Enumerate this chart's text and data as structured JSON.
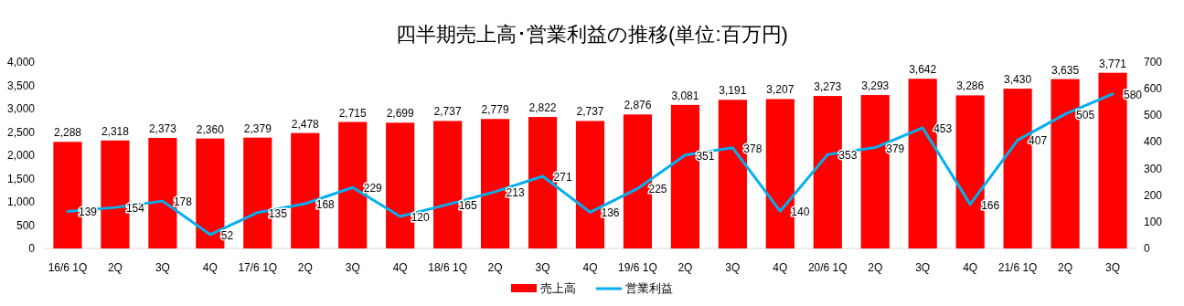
{
  "chart_data": {
    "type": "bar",
    "title": "四半期売上高･営業利益の推移(単位:百万円)",
    "categories": [
      "16/6 1Q",
      "2Q",
      "3Q",
      "4Q",
      "17/6 1Q",
      "2Q",
      "3Q",
      "4Q",
      "18/6 1Q",
      "2Q",
      "3Q",
      "4Q",
      "19/6 1Q",
      "2Q",
      "3Q",
      "4Q",
      "20/6 1Q",
      "2Q",
      "3Q",
      "4Q",
      "21/6 1Q",
      "2Q",
      "3Q"
    ],
    "series": [
      {
        "name": "売上高",
        "color": "#ff0000",
        "values": [
          2288,
          2318,
          2373,
          2360,
          2379,
          2478,
          2715,
          2699,
          2737,
          2779,
          2822,
          2737,
          2876,
          3081,
          3191,
          3207,
          3273,
          3293,
          3642,
          3286,
          3430,
          3635,
          3771
        ],
        "value_labels": [
          "2,288",
          "2,318",
          "2,373",
          "2,360",
          "2,379",
          "2,478",
          "2,715",
          "2,699",
          "2,737",
          "2,779",
          "2,822",
          "2,737",
          "2,876",
          "3,081",
          "3,191",
          "3,207",
          "3,273",
          "3,293",
          "3,642",
          "3,286",
          "3,430",
          "3,635",
          "3,771"
        ]
      },
      {
        "name": "営業利益",
        "type": "line",
        "axis": "y2",
        "color": "#00b0f0",
        "values": [
          139,
          154,
          178,
          52,
          135,
          168,
          229,
          120,
          165,
          213,
          271,
          136,
          225,
          351,
          378,
          140,
          353,
          379,
          453,
          166,
          407,
          505,
          580
        ],
        "value_labels": [
          "139",
          "154",
          "178",
          "52",
          "135",
          "168",
          "229",
          "120",
          "165",
          "213",
          "271",
          "136",
          "225",
          "351",
          "378",
          "140",
          "353",
          "379",
          "453",
          "166",
          "407",
          "505",
          "580"
        ]
      }
    ],
    "ylim": [
      0,
      4000
    ],
    "yticks": [
      0,
      {
        "value": 500,
        "label": "500"
      },
      {
        "value": 1000,
        "label": "1,000"
      },
      {
        "value": 1500,
        "label": "1,500"
      },
      {
        "value": 2000,
        "label": "2,000"
      },
      {
        "value": 2500,
        "label": "2,500"
      },
      {
        "value": 3000,
        "label": "3,000"
      },
      {
        "value": 3500,
        "label": "3,500"
      },
      {
        "value": 4000,
        "label": "4,000"
      }
    ],
    "y2lim": [
      0,
      700
    ],
    "y2ticks": [
      0,
      100,
      200,
      300,
      400,
      500,
      600,
      700
    ],
    "legend": "bottom",
    "marker": "none",
    "line_style": "solid",
    "grid": false
  }
}
